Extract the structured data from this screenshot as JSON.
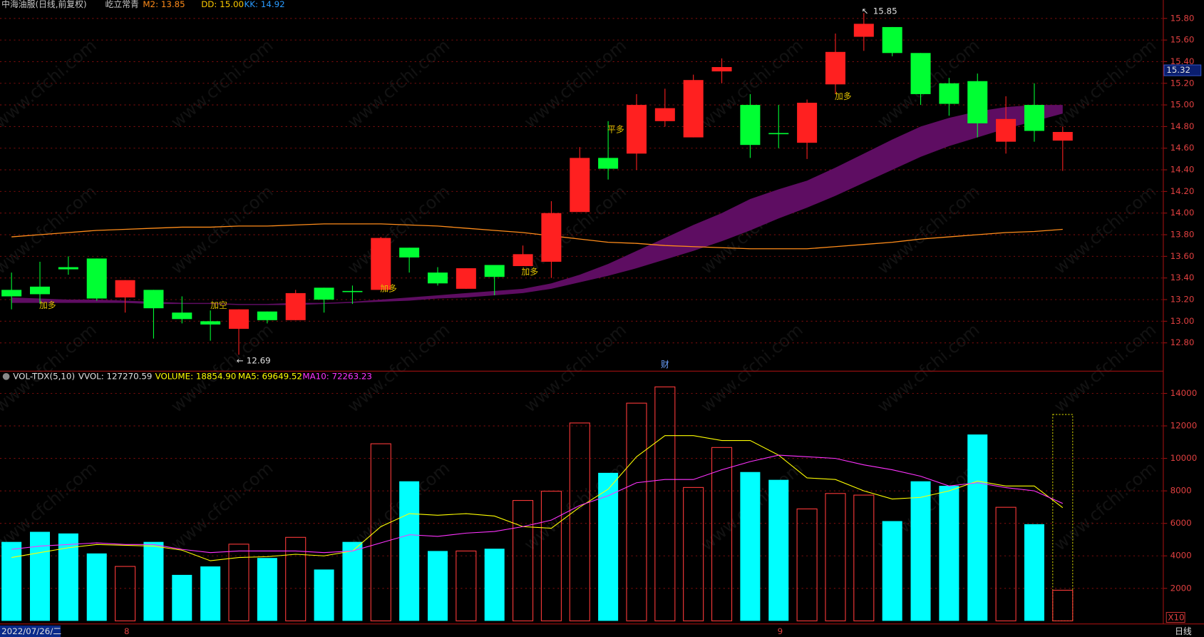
{
  "chart_data": [
    {
      "type": "candlestick",
      "title": "中海油服(日线,前复权)",
      "subtitle": "屹立常青",
      "categories": [
        null,
        null,
        null,
        null,
        "8",
        null,
        null,
        null,
        null,
        null,
        null,
        null,
        null,
        null,
        null,
        null,
        null,
        null,
        null,
        null,
        null,
        null,
        null,
        null,
        null,
        null,
        null,
        "9",
        null,
        null,
        null,
        null,
        null,
        null,
        null,
        null,
        null,
        null
      ],
      "open": [
        13.29,
        13.32,
        13.5,
        13.58,
        13.22,
        13.29,
        13.08,
        13.0,
        12.93,
        13.09,
        13.01,
        13.31,
        13.28,
        13.29,
        13.68,
        13.45,
        13.3,
        13.52,
        13.51,
        13.55,
        14.01,
        14.51,
        14.55,
        14.85,
        14.7,
        15.31,
        15.0,
        14.74,
        14.65,
        15.19,
        15.63,
        15.72,
        15.48,
        15.2,
        15.22,
        14.66,
        15.0,
        14.67
      ],
      "high": [
        13.45,
        13.55,
        13.6,
        13.58,
        13.38,
        13.29,
        13.23,
        13.1,
        13.11,
        13.09,
        13.29,
        13.31,
        13.33,
        13.78,
        13.68,
        13.5,
        13.49,
        13.52,
        13.7,
        14.11,
        14.61,
        14.85,
        15.1,
        15.15,
        15.28,
        15.43,
        15.1,
        15.0,
        15.05,
        15.66,
        15.85,
        15.72,
        15.48,
        15.25,
        15.29,
        15.08,
        15.2,
        14.8
      ],
      "low": [
        13.11,
        13.16,
        13.43,
        13.19,
        13.08,
        12.84,
        12.98,
        12.82,
        12.69,
        12.98,
        13.01,
        13.08,
        13.16,
        13.29,
        13.45,
        13.33,
        13.3,
        13.24,
        13.51,
        13.4,
        14.01,
        14.31,
        14.4,
        14.8,
        14.7,
        15.2,
        14.51,
        14.6,
        14.5,
        15.1,
        15.5,
        15.45,
        15.0,
        14.9,
        14.7,
        14.55,
        14.66,
        14.39
      ],
      "close": [
        13.23,
        13.25,
        13.48,
        13.21,
        13.38,
        13.12,
        13.02,
        12.97,
        13.11,
        13.01,
        13.26,
        13.2,
        13.27,
        13.77,
        13.59,
        13.35,
        13.49,
        13.41,
        13.62,
        14.0,
        14.51,
        14.41,
        15.0,
        14.97,
        15.23,
        15.35,
        14.63,
        14.73,
        15.02,
        15.49,
        15.75,
        15.48,
        15.1,
        15.01,
        14.83,
        14.87,
        14.76,
        14.75
      ],
      "up_color": "#ff2020",
      "down_color": "#00ff33",
      "series": [
        {
          "name": "M2: 13.85",
          "color": "#ff8c1a",
          "values": [
            13.78,
            13.8,
            13.82,
            13.84,
            13.85,
            13.86,
            13.87,
            13.87,
            13.88,
            13.88,
            13.89,
            13.9,
            13.9,
            13.9,
            13.89,
            13.88,
            13.86,
            13.84,
            13.82,
            13.79,
            13.76,
            13.73,
            13.72,
            13.7,
            13.69,
            13.68,
            13.67,
            13.67,
            13.67,
            13.69,
            13.71,
            13.73,
            13.76,
            13.78,
            13.8,
            13.82,
            13.83,
            13.85
          ]
        },
        {
          "name": "DD: 15.00",
          "color": "#ffcc00",
          "values": [
            13.22,
            13.21,
            13.2,
            13.2,
            13.19,
            13.18,
            13.17,
            13.17,
            13.16,
            13.16,
            13.17,
            13.17,
            13.18,
            13.2,
            13.22,
            13.24,
            13.26,
            13.28,
            13.3,
            13.35,
            13.43,
            13.53,
            13.65,
            13.77,
            13.89,
            14.0,
            14.13,
            14.22,
            14.3,
            14.42,
            14.55,
            14.68,
            14.8,
            14.88,
            14.94,
            14.98,
            15.0,
            15.0
          ]
        },
        {
          "name": "KK: 14.92",
          "color": "#2a9bff",
          "values": [
            13.17,
            13.17,
            13.17,
            13.17,
            13.17,
            13.16,
            13.16,
            13.16,
            13.15,
            13.15,
            13.15,
            13.16,
            13.17,
            13.18,
            13.19,
            13.21,
            13.22,
            13.24,
            13.26,
            13.3,
            13.36,
            13.42,
            13.49,
            13.57,
            13.65,
            13.74,
            13.84,
            13.95,
            14.05,
            14.16,
            14.28,
            14.4,
            14.52,
            14.62,
            14.7,
            14.78,
            14.85,
            14.92
          ]
        }
      ],
      "band_color": "#5e0d62",
      "ylim": [
        12.56,
        15.97
      ],
      "yticks": [
        {
          "value": 12.8,
          "label": "12.80"
        },
        {
          "value": 13.0,
          "label": "13.00"
        },
        {
          "value": 13.2,
          "label": "13.20"
        },
        {
          "value": 13.4,
          "label": "13.40"
        },
        {
          "value": 13.6,
          "label": "13.60"
        },
        {
          "value": 13.8,
          "label": "13.80"
        },
        {
          "value": 14.0,
          "label": "14.00"
        },
        {
          "value": 14.2,
          "label": "14.20"
        },
        {
          "value": 14.4,
          "label": "14.40"
        },
        {
          "value": 14.6,
          "label": "14.60"
        },
        {
          "value": 14.8,
          "label": "14.80"
        },
        {
          "value": 15.0,
          "label": "15.00"
        },
        {
          "value": 15.2,
          "label": "15.20"
        },
        {
          "value": 15.4,
          "label": "15.40"
        },
        {
          "value": 15.6,
          "label": "15.60"
        },
        {
          "value": 15.8,
          "label": "15.80"
        }
      ],
      "grid": true,
      "price_marker": {
        "value": 15.32,
        "label": "15.32"
      },
      "signals": [
        "加多",
        "加空",
        "加多",
        "加多",
        "平多",
        "加多"
      ],
      "event_marker": "财",
      "date_label": "2022/07/26/二",
      "period_label": "日线",
      "watermark": "www.cfchi.com"
    },
    {
      "type": "bar",
      "title": "VOL-TDX(5,10)",
      "subtitle": "VVOL: 127270.59",
      "name": "VOLUME: 18854.90",
      "color": "#ffff00",
      "values": [
        4860,
        5480,
        5380,
        4150,
        3350,
        4860,
        2830,
        3350,
        4720,
        3870,
        5140,
        3160,
        4860,
        10900,
        8590,
        4300,
        4300,
        4440,
        7410,
        7980,
        12180,
        9110,
        13400,
        14400,
        8210,
        10670,
        9160,
        8680,
        6890,
        7840,
        7740,
        6140,
        8590,
        8310,
        11470,
        6990,
        5950,
        1885
      ],
      "up_color": "#ff3a3a",
      "down_color": "#00ffff",
      "projected": 12700,
      "series": [
        {
          "name": "MA5: 69649.52",
          "color": "#ffff00",
          "values": [
            3900,
            4200,
            4500,
            4700,
            4650,
            4600,
            4350,
            3700,
            3900,
            3950,
            4100,
            4000,
            4300,
            5800,
            6600,
            6500,
            6600,
            6450,
            5800,
            5700,
            7000,
            8100,
            10100,
            11400,
            11400,
            11100,
            11100,
            10200,
            8800,
            8700,
            8000,
            7500,
            7600,
            8000,
            8600,
            8300,
            8300,
            6965
          ]
        },
        {
          "name": "MA10: 72263.23",
          "color": "#ff33ff",
          "values": [
            4400,
            4600,
            4700,
            4800,
            4700,
            4700,
            4400,
            4200,
            4300,
            4300,
            4300,
            4200,
            4300,
            4800,
            5300,
            5200,
            5400,
            5500,
            5800,
            6200,
            7100,
            7700,
            8500,
            8700,
            8700,
            9300,
            9800,
            10200,
            10100,
            10000,
            9600,
            9300,
            8900,
            8300,
            8500,
            8200,
            8000,
            7226
          ]
        }
      ],
      "ylim": [
        0,
        15370
      ],
      "yticks": [
        2000,
        4000,
        6000,
        8000,
        10000,
        12000,
        14000
      ],
      "grid": true,
      "scale_label": "X10"
    }
  ]
}
